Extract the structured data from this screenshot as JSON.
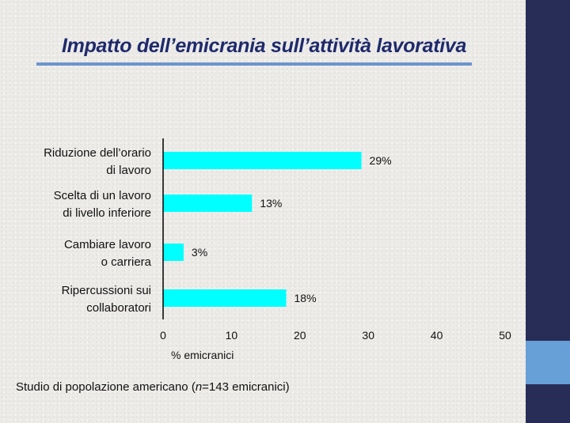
{
  "slide": {
    "title": "Impatto dell’emicrania sull’attività lavorativa",
    "footnote": {
      "prefix": "Studio di popolazione americano (",
      "n": "n",
      "suffix": "=143 emicranici)"
    }
  },
  "colors": {
    "bar": "#00ffff",
    "title": "#1f2a6b",
    "underline": "#6c94cc",
    "band": "#272d57",
    "band_accent": "#679fd7"
  },
  "chart_data": {
    "type": "bar",
    "orientation": "horizontal",
    "categories": [
      [
        "Riduzione dell’orario",
        "di lavoro"
      ],
      [
        "Scelta di un lavoro",
        "di livello inferiore"
      ],
      [
        "Cambiare lavoro",
        "o carriera"
      ],
      [
        "Ripercussioni sui",
        "collaboratori"
      ]
    ],
    "values": [
      29,
      13,
      3,
      18
    ],
    "value_labels": [
      "29%",
      "13%",
      "3%",
      "18%"
    ],
    "xlabel": "% emicranici",
    "xlim": [
      0,
      50
    ],
    "xticks": [
      "0",
      "10",
      "20",
      "30",
      "40",
      "50"
    ],
    "grid": false,
    "legend": "none"
  }
}
